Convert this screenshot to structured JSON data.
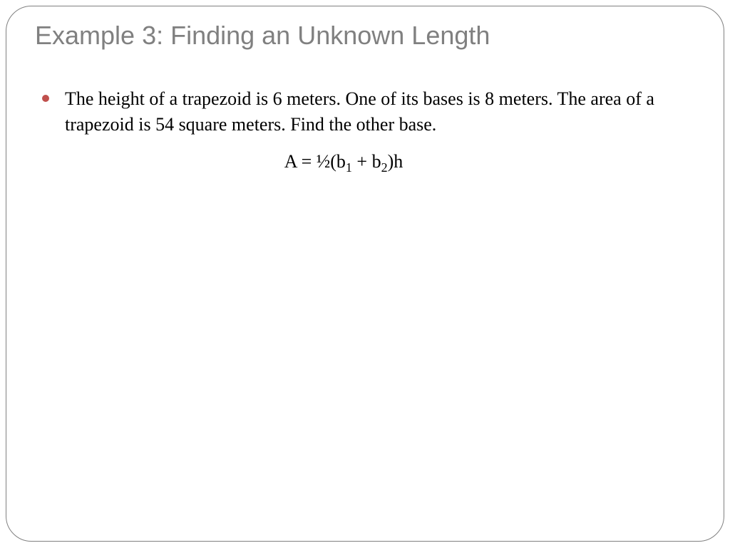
{
  "slide": {
    "title": "Example 3: Finding an Unknown Length",
    "bullet_color": "#c0504d",
    "title_color": "#808080",
    "text_color": "#000000",
    "border_color": "#808080",
    "background_color": "#ffffff",
    "bullet_text": "The height of a trapezoid is 6 meters.  One of its bases is 8 meters.  The area of a trapezoid is 54 square meters.  Find the other base.",
    "formula_parts": {
      "prefix": "A = ½(b",
      "sub1": "1",
      "mid": " + b",
      "sub2": "2",
      "suffix": ")h"
    },
    "title_fontsize": 36,
    "body_fontsize": 26,
    "border_radius": 36
  }
}
